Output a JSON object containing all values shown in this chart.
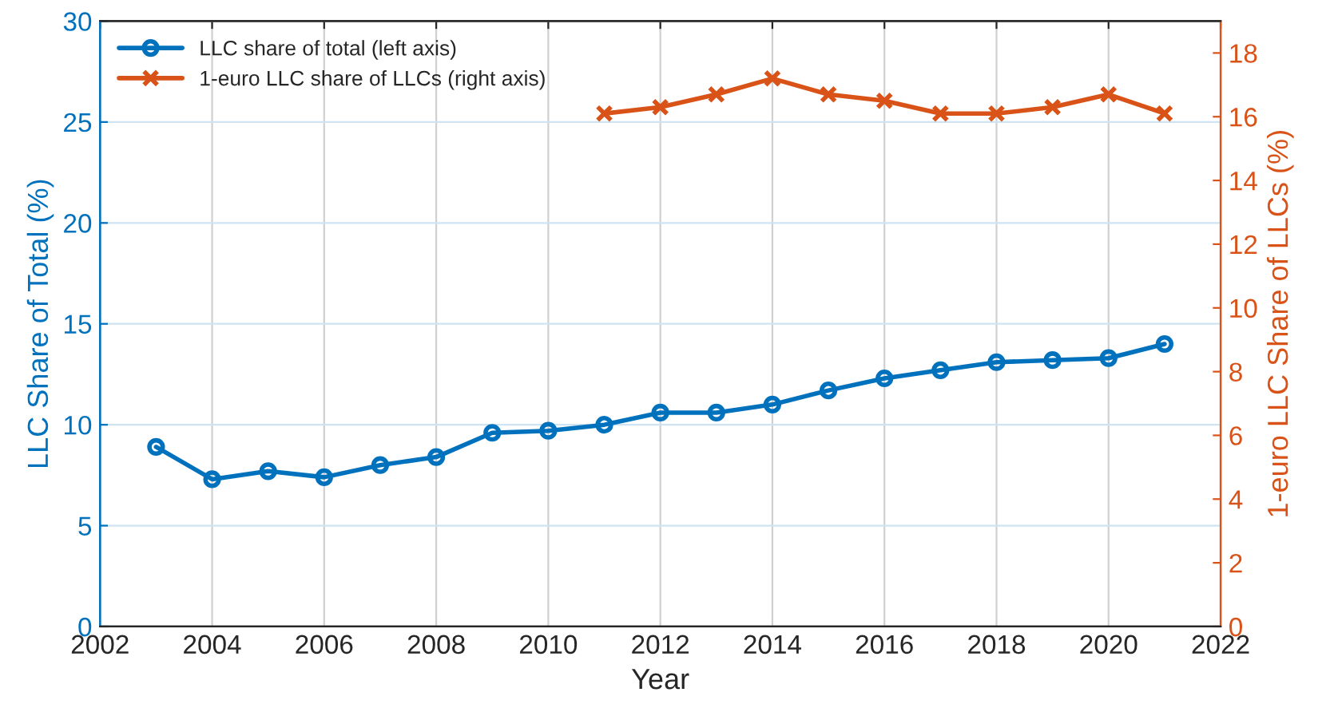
{
  "chart_data": {
    "type": "line",
    "xlabel": "Year",
    "ylabel": "LLC Share of Total (%)",
    "y2label": "1-euro LLC Share of LLCs (%)",
    "xlim": [
      2002,
      2022
    ],
    "xticks": [
      2002,
      2004,
      2006,
      2008,
      2010,
      2012,
      2014,
      2016,
      2018,
      2020,
      2022
    ],
    "ylim": [
      0,
      30
    ],
    "yticks": [
      0,
      5,
      10,
      15,
      20,
      25,
      30
    ],
    "y2lim": [
      0,
      19
    ],
    "y2ticks": [
      0,
      2,
      4,
      6,
      8,
      10,
      12,
      14,
      16,
      18
    ],
    "grid": true,
    "legend": "top left",
    "line_style": "solid",
    "series": [
      {
        "name": "LLC share of total (left axis)",
        "color": "#0072bd",
        "marker": "circle",
        "x": [
          2003,
          2004,
          2005,
          2006,
          2007,
          2008,
          2009,
          2010,
          2011,
          2012,
          2013,
          2014,
          2015,
          2016,
          2017,
          2018,
          2019,
          2020,
          2021
        ],
        "values": [
          8.9,
          7.3,
          7.7,
          7.4,
          8.0,
          8.4,
          9.6,
          9.7,
          10.0,
          10.6,
          10.6,
          11.0,
          11.7,
          12.3,
          12.7,
          13.1,
          13.2,
          13.3,
          14.0
        ]
      },
      {
        "name": "1-euro LLC share of LLCs (right axis)",
        "color": "#d95319",
        "marker": "cross",
        "axis": "y2",
        "x": [
          2011,
          2012,
          2013,
          2014,
          2015,
          2016,
          2017,
          2018,
          2019,
          2020,
          2021
        ],
        "values": [
          16.1,
          16.3,
          16.7,
          17.2,
          16.7,
          16.5,
          16.1,
          16.1,
          16.3,
          16.7,
          16.1
        ]
      }
    ]
  }
}
